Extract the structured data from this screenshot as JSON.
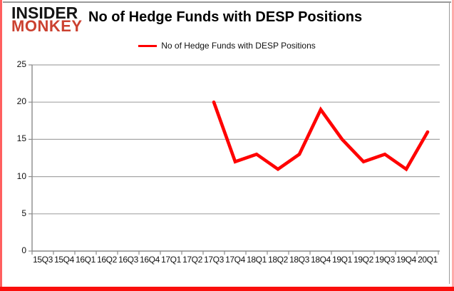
{
  "brand": {
    "line1": "INSIDER",
    "line2": "MONKEY"
  },
  "header": {
    "title": "No of Hedge Funds with DESP Positions"
  },
  "legend": {
    "label": "No of Hedge Funds with DESP Positions"
  },
  "colors": {
    "series": "#ff0000",
    "grid": "#a6a6a6",
    "axis": "#8c8c8c",
    "brand_red": "#cb4130",
    "border_red": "#fa0f0c"
  },
  "chart_data": {
    "type": "line",
    "title": "No of Hedge Funds with DESP Positions",
    "categories": [
      "15Q3",
      "15Q4",
      "16Q1",
      "16Q2",
      "16Q3",
      "16Q4",
      "17Q1",
      "17Q2",
      "17Q3",
      "17Q4",
      "18Q1",
      "18Q2",
      "18Q3",
      "18Q4",
      "19Q1",
      "19Q2",
      "19Q3",
      "19Q4",
      "20Q1"
    ],
    "series": [
      {
        "name": "No of Hedge Funds with DESP Positions",
        "color": "#ff0000",
        "values": [
          null,
          null,
          null,
          null,
          null,
          null,
          null,
          null,
          20,
          12,
          13,
          11,
          13,
          19,
          15,
          12,
          13,
          11,
          16
        ]
      }
    ],
    "y_ticks": [
      0,
      5,
      10,
      15,
      20,
      25
    ],
    "ylim": [
      0,
      25
    ],
    "xlabel": "",
    "ylabel": "",
    "grid": true,
    "legend_position": "top-center"
  }
}
